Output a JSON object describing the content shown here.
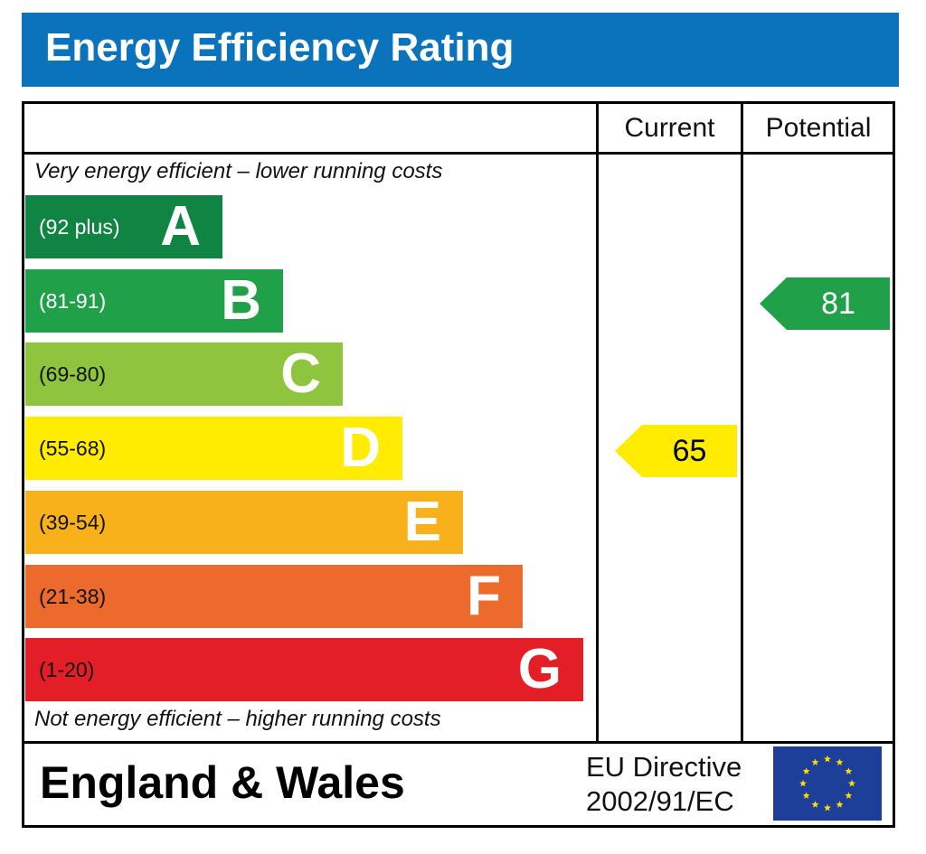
{
  "title": "Energy Efficiency Rating",
  "columns": {
    "current": "Current",
    "potential": "Potential"
  },
  "captions": {
    "top": "Very energy efficient – lower running costs",
    "bottom": "Not energy efficient – higher running costs"
  },
  "footer": {
    "country": "England & Wales",
    "directive_line1": "EU Directive",
    "directive_line2": "2002/91/EC",
    "flag_icon": "eu-flag-icon"
  },
  "chart_data": {
    "type": "bar",
    "categories": [
      "A",
      "B",
      "C",
      "D",
      "E",
      "F",
      "G"
    ],
    "ranges": [
      "(92 plus)",
      "(81-91)",
      "(69-80)",
      "(55-68)",
      "(39-54)",
      "(21-38)",
      "(1-20)"
    ],
    "colors": [
      "#0f8443",
      "#21a04a",
      "#8fc43f",
      "#ffec00",
      "#f9b11b",
      "#ec6a2b",
      "#e31e26"
    ],
    "range_text_colors": [
      "#ffffff",
      "#ffffff",
      "#111111",
      "#111111",
      "#111111",
      "#111111",
      "#111111"
    ],
    "current": {
      "value": 65,
      "band": "D",
      "color": "#ffec00",
      "text_color": "#000000"
    },
    "potential": {
      "value": 81,
      "band": "B",
      "color": "#21a04a",
      "text_color": "#ffffff"
    }
  }
}
